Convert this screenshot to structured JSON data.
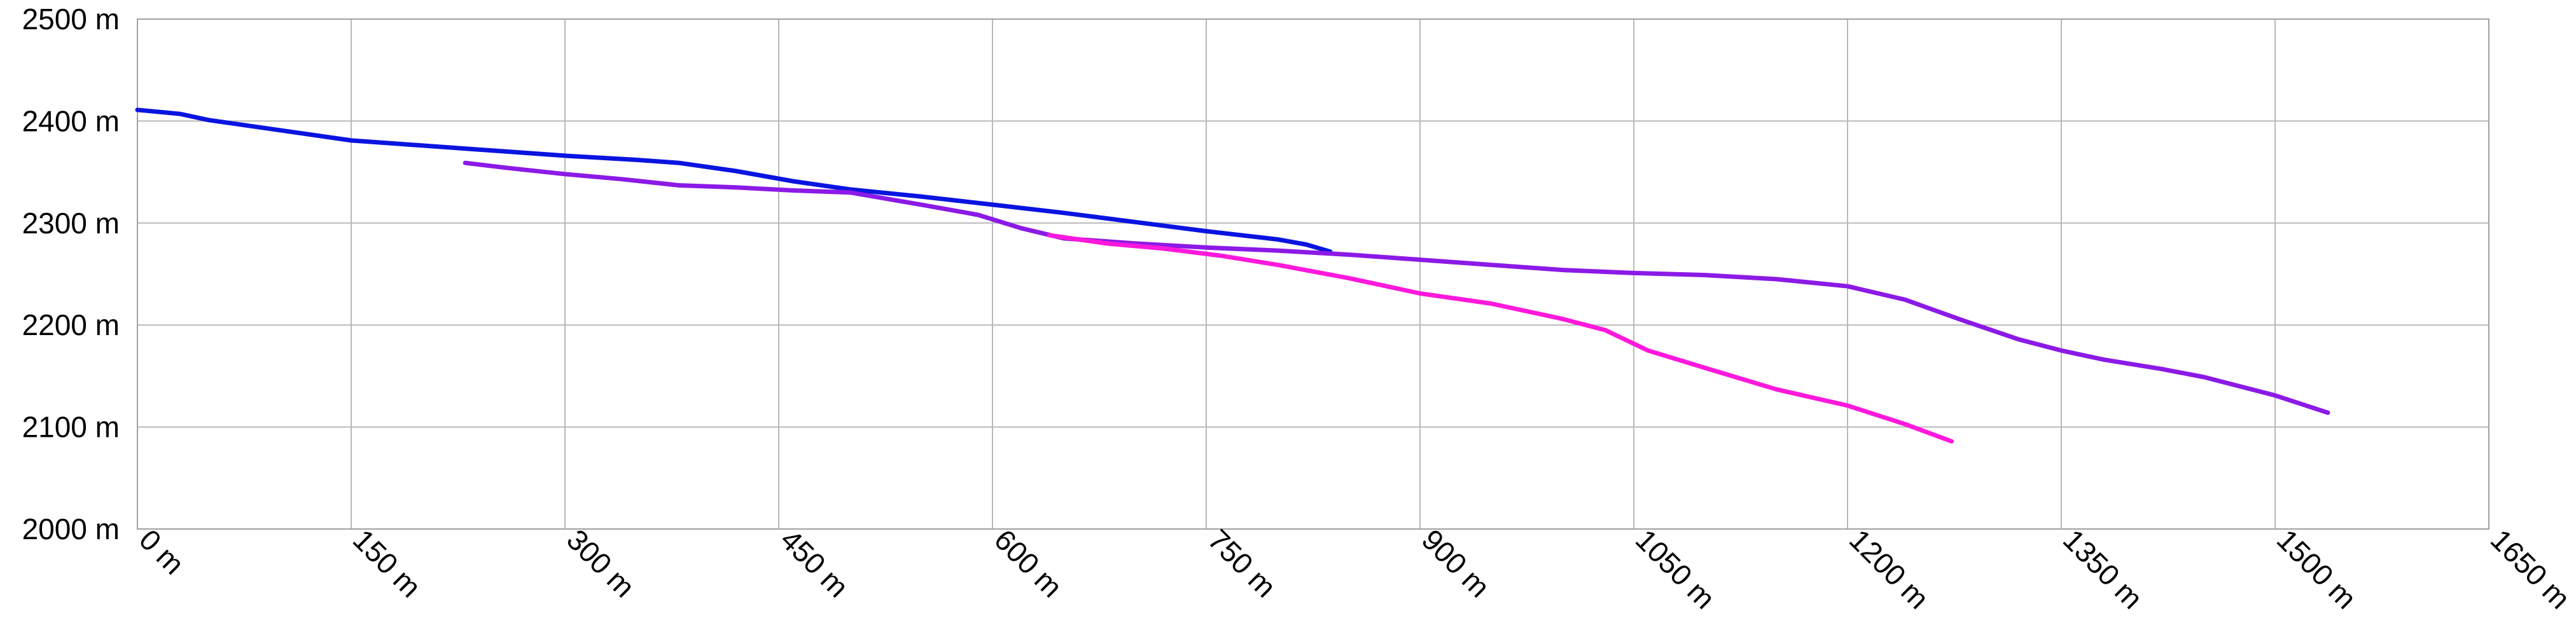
{
  "chart_data": {
    "type": "line",
    "title": "",
    "xlabel": "",
    "ylabel": "",
    "xlim": [
      0,
      1650
    ],
    "ylim": [
      2000,
      2500
    ],
    "x_ticks": [
      0,
      150,
      300,
      450,
      600,
      750,
      900,
      1050,
      1200,
      1350,
      1500,
      1650
    ],
    "y_ticks": [
      2000,
      2100,
      2200,
      2300,
      2400,
      2500
    ],
    "x_tick_labels": [
      "0 m",
      "150 m",
      "300 m",
      "450 m",
      "600 m",
      "750 m",
      "900 m",
      "1050 m",
      "1200 m",
      "1350 m",
      "1500 m",
      "1650 m"
    ],
    "y_tick_labels": [
      "2000 m",
      "2100 m",
      "2200 m",
      "2300 m",
      "2400 m",
      "2500 m"
    ],
    "grid": true,
    "legend": "none",
    "series": [
      {
        "color": "#0a14e0",
        "x": [
          0,
          30,
          50,
          100,
          150,
          200,
          250,
          300,
          350,
          380,
          420,
          460,
          500,
          550,
          600,
          650,
          700,
          750,
          800,
          820,
          837
        ],
        "y": [
          2411,
          2407,
          2401,
          2391,
          2381,
          2376,
          2371,
          2366,
          2362,
          2359,
          2351,
          2341,
          2333,
          2326,
          2318,
          2310,
          2301,
          2292,
          2284,
          2279,
          2272
        ]
      },
      {
        "color": "#8c1ae6",
        "x": [
          230,
          260,
          300,
          340,
          380,
          420,
          460,
          500,
          550,
          590,
          620,
          650,
          700,
          750,
          800,
          850,
          900,
          950,
          1000,
          1050,
          1100,
          1150,
          1200,
          1240,
          1280,
          1320,
          1350,
          1380,
          1420,
          1450,
          1500,
          1537
        ],
        "y": [
          2359,
          2354,
          2348,
          2343,
          2337,
          2335,
          2332,
          2330,
          2318,
          2308,
          2295,
          2285,
          2280,
          2276,
          2273,
          2269,
          2264,
          2259,
          2254,
          2251,
          2249,
          2245,
          2238,
          2225,
          2205,
          2186,
          2175,
          2166,
          2157,
          2149,
          2131,
          2114
        ]
      },
      {
        "color": "#ff19dc",
        "x": [
          640,
          680,
          720,
          760,
          800,
          850,
          900,
          950,
          1000,
          1030,
          1060,
          1100,
          1150,
          1200,
          1240,
          1273
        ],
        "y": [
          2288,
          2280,
          2275,
          2268,
          2259,
          2246,
          2231,
          2221,
          2206,
          2195,
          2175,
          2158,
          2137,
          2121,
          2103,
          2086
        ]
      }
    ]
  }
}
